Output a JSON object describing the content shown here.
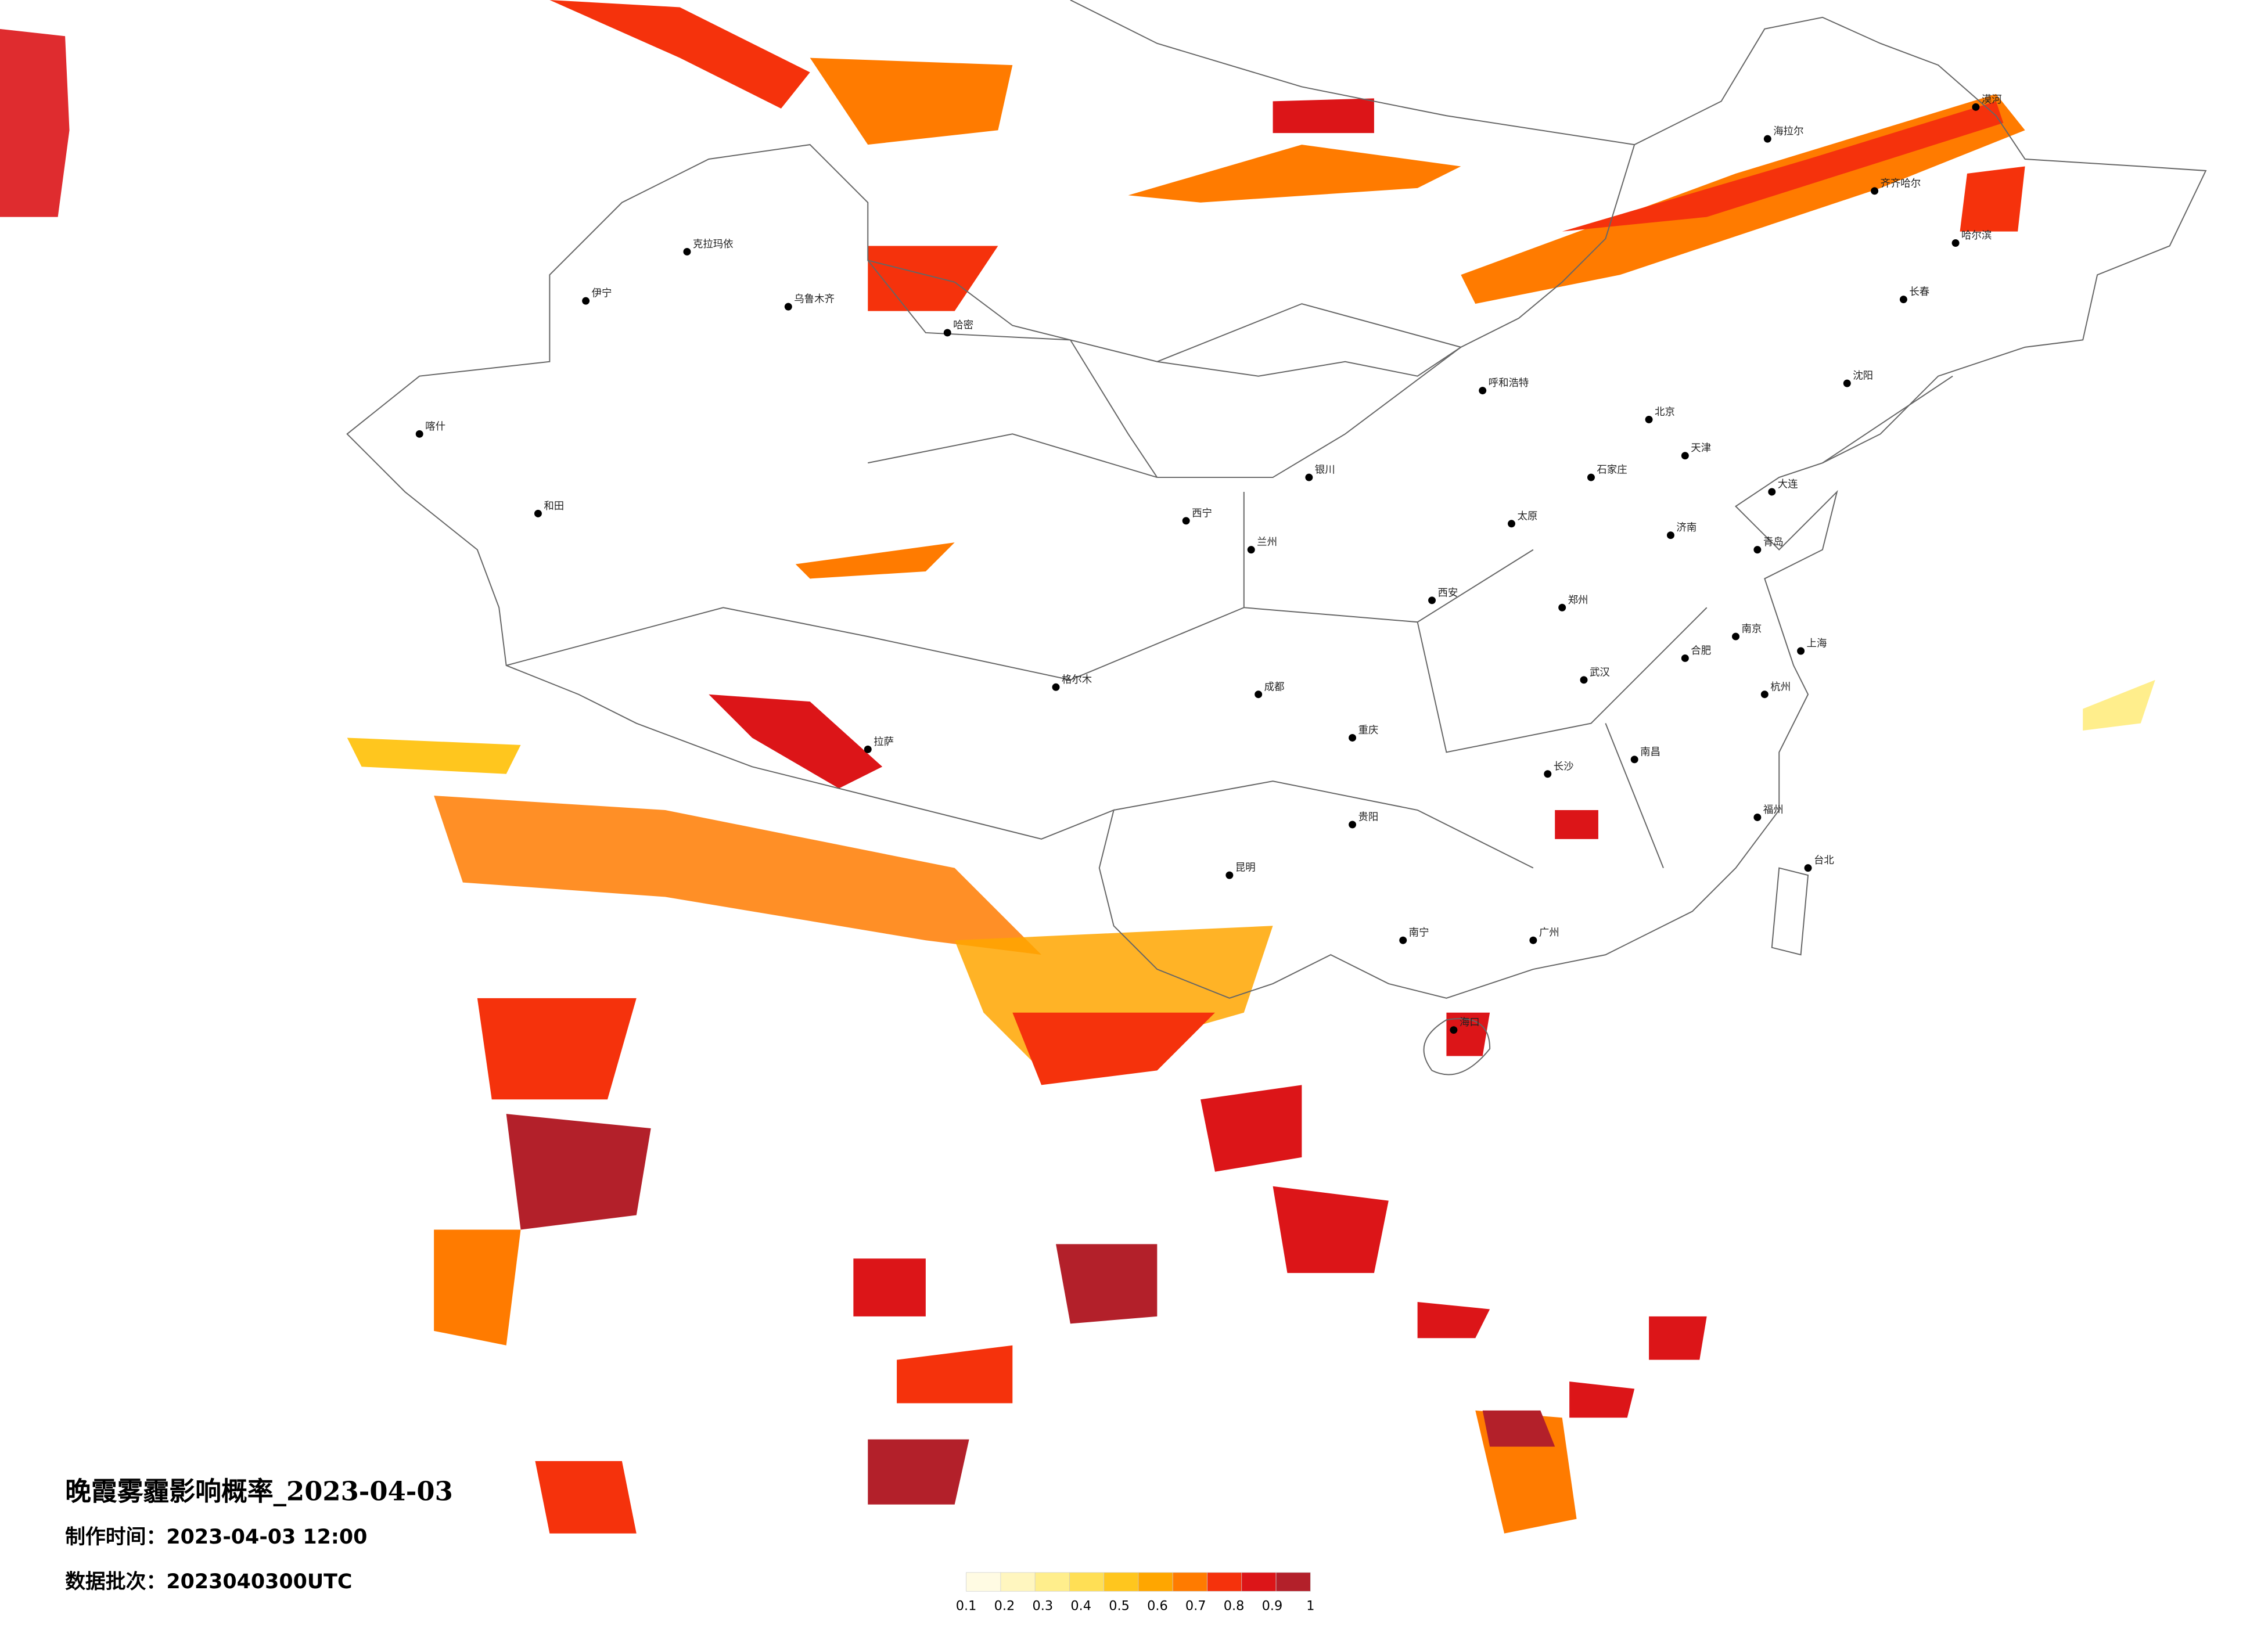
{
  "header": {
    "title": "晚霞雾霾影响概率_2023-04-03",
    "issue_time": "制作时间：2023-04-03 12:00",
    "data_batch": "数据批次：2023040300UTC"
  },
  "colorbar": {
    "ticks": [
      0.1,
      0.2,
      0.3,
      0.4,
      0.5,
      0.6,
      0.7,
      0.8,
      0.9,
      1
    ],
    "colors": [
      "#fffbe3",
      "#fff6bf",
      "#ffee8c",
      "#ffdf55",
      "#ffc61e",
      "#ffa600",
      "#ff7b00",
      "#f5320c",
      "#dc1518",
      "#b3202a"
    ]
  },
  "cities": [
    "漠河",
    "海拉尔",
    "齐齐哈尔",
    "哈尔滨",
    "长春",
    "沈阳",
    "大连",
    "北京",
    "天津",
    "石家庄",
    "太原",
    "呼和浩特",
    "济南",
    "青岛",
    "郑州",
    "西安",
    "兰州",
    "西宁",
    "银川",
    "乌鲁木齐",
    "伊宁",
    "克拉玛依",
    "哈密",
    "喀什",
    "和田",
    "格尔木",
    "拉萨",
    "成都",
    "重庆",
    "贵阳",
    "昆明",
    "南宁",
    "广州",
    "武汉",
    "长沙",
    "南昌",
    "合肥",
    "南京",
    "上海",
    "杭州",
    "福州",
    "台北",
    "海口"
  ]
}
